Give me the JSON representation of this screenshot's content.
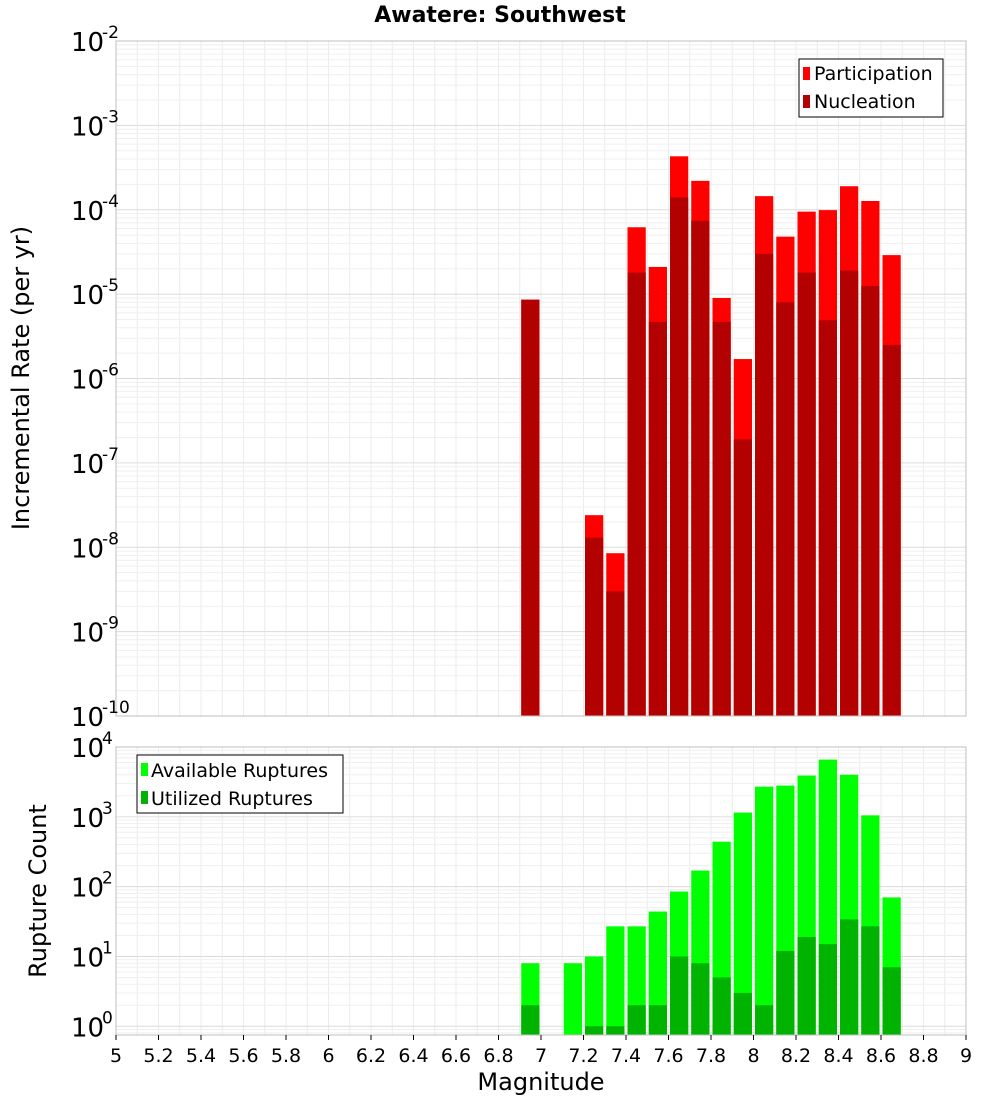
{
  "title": "Awatere: Southwest",
  "colors": {
    "participation": "#ff0000",
    "nucleation": "#b30000",
    "available": "#00ff00",
    "utilized": "#00b300",
    "grid": "#e6e6e6",
    "frame": "#bfbfbf"
  },
  "chart_data": [
    {
      "type": "bar",
      "title": "Awatere: Southwest",
      "xlabel": "",
      "ylabel": "Incremental Rate (per yr)",
      "xlim": [
        5,
        9
      ],
      "ylim": [
        1e-10,
        0.01
      ],
      "yscale": "log",
      "y_ticks": [
        {
          "exp": "-10",
          "value": 1e-10
        },
        {
          "exp": "-9",
          "value": 1e-09
        },
        {
          "exp": "-8",
          "value": 1e-08
        },
        {
          "exp": "-7",
          "value": 1e-07
        },
        {
          "exp": "-6",
          "value": 1e-06
        },
        {
          "exp": "-5",
          "value": 1e-05
        },
        {
          "exp": "-4",
          "value": 0.0001
        },
        {
          "exp": "-3",
          "value": 0.001
        },
        {
          "exp": "-2",
          "value": 0.01
        }
      ],
      "legend_position": "top-right",
      "grid": true,
      "bin_width": 0.1,
      "x": [
        6.95,
        7.25,
        7.35,
        7.45,
        7.55,
        7.65,
        7.75,
        7.85,
        7.95,
        8.05,
        8.15,
        8.25,
        8.35,
        8.45,
        8.55,
        8.65
      ],
      "series": [
        {
          "name": "Participation",
          "color": "#ff0000",
          "values": [
            8.6e-06,
            2.4e-08,
            8.5e-09,
            6.2e-05,
            2.1e-05,
            0.00043,
            0.00022,
            9e-06,
            1.7e-06,
            0.000145,
            4.8e-05,
            9.5e-05,
            9.9e-05,
            0.00019,
            0.000127,
            2.9e-05
          ]
        },
        {
          "name": "Nucleation",
          "color": "#b30000",
          "values": [
            8.6e-06,
            1.3e-08,
            3e-09,
            1.8e-05,
            4.7e-06,
            0.00014,
            7.4e-05,
            4.7e-06,
            1.9e-07,
            3e-05,
            8e-06,
            1.8e-05,
            4.9e-06,
            1.9e-05,
            1.25e-05,
            2.5e-06
          ]
        }
      ]
    },
    {
      "type": "bar",
      "title": "",
      "xlabel": "Magnitude",
      "ylabel": "Rupture Count",
      "xlim": [
        5,
        9
      ],
      "ylim": [
        0.75,
        10000
      ],
      "yscale": "log",
      "y_ticks": [
        {
          "exp": "0",
          "value": 1
        },
        {
          "exp": "1",
          "value": 10
        },
        {
          "exp": "2",
          "value": 100
        },
        {
          "exp": "3",
          "value": 1000
        },
        {
          "exp": "4",
          "value": 10000
        }
      ],
      "x_ticks": [
        "5",
        "5.2",
        "5.4",
        "5.6",
        "5.8",
        "6",
        "6.2",
        "6.4",
        "6.6",
        "6.8",
        "7",
        "7.2",
        "7.4",
        "7.6",
        "7.8",
        "8",
        "8.2",
        "8.4",
        "8.6",
        "8.8",
        "9"
      ],
      "legend_position": "top-left",
      "grid": true,
      "bin_width": 0.1,
      "x": [
        6.95,
        7.15,
        7.25,
        7.35,
        7.45,
        7.55,
        7.65,
        7.75,
        7.85,
        7.95,
        8.05,
        8.15,
        8.25,
        8.35,
        8.45,
        8.55,
        8.65
      ],
      "series": [
        {
          "name": "Available Ruptures",
          "color": "#00ff00",
          "values": [
            8,
            8,
            10,
            27,
            27,
            44,
            85,
            170,
            440,
            1150,
            2700,
            2800,
            3900,
            6600,
            4000,
            1050,
            70
          ]
        },
        {
          "name": "Utilized Ruptures",
          "color": "#00b300",
          "values": [
            2,
            0,
            1,
            1,
            2,
            2,
            10,
            8,
            5,
            3,
            2,
            12,
            19,
            15,
            34,
            27,
            7
          ]
        }
      ]
    }
  ]
}
